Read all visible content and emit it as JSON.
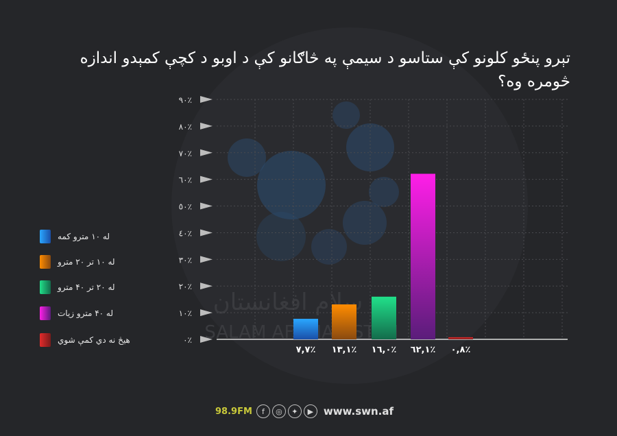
{
  "title": "تېرو پنځو کلونو کې ستاسو د سيمې په څاګانو کې د اوبو د کچې کمېدو اندازه څومره وه؟",
  "colors": {
    "background": "#252629",
    "text": "#ffffff",
    "axis": "#dddddd",
    "grid": "#4a4b4f"
  },
  "legend": [
    {
      "label": "له ۱۰ مترو کمه",
      "color_top": "#2aa7ff",
      "color_bottom": "#1a4fa8"
    },
    {
      "label": "له ۱۰ تر ۲۰ مترو",
      "color_top": "#ff8c00",
      "color_bottom": "#8a4a10"
    },
    {
      "label": "له ۲۰ تر ۴۰ مترو",
      "color_top": "#21e08a",
      "color_bottom": "#136b4b"
    },
    {
      "label": "له ۴۰ مترو زيات",
      "color_top": "#ff1ee8",
      "color_bottom": "#5a1d7a"
    },
    {
      "label": "هيڅ نه دي کمې شوي",
      "color_top": "#e32b2b",
      "color_bottom": "#7a1b1b"
    }
  ],
  "chart_data": {
    "type": "bar",
    "title": "تېرو پنځو کلونو کې ستاسو د سيمې په څاګانو کې د اوبو د کچې کمېدو اندازه څومره وه؟",
    "categories": [
      "له ۱۰ مترو کمه",
      "له ۱۰ تر ۲۰ مترو",
      "له ۲۰ تر ۴۰ مترو",
      "له ۴۰ مترو زيات",
      "هيڅ نه دي کمې شوي"
    ],
    "values": [
      7.7,
      13.1,
      16.0,
      62.1,
      0.8
    ],
    "value_labels": [
      "٧,٧٪",
      "١٣,١٪",
      "١٦,٠٪",
      "٦٢,١٪",
      "٠,٨٪"
    ],
    "yticks": [
      0,
      10,
      20,
      30,
      40,
      50,
      60,
      70,
      80,
      90
    ],
    "ytick_labels": [
      "٠٪",
      "١٠٪",
      "٢٠٪",
      "٣٠٪",
      "٤٠٪",
      "٥٠٪",
      "٦٠٪",
      "٧٠٪",
      "٨٠٪",
      "٩٠٪"
    ],
    "ylim": [
      0,
      90
    ],
    "grid": true,
    "legend_position": "left"
  },
  "watermark": {
    "line1": "سلام افغانستان",
    "line2": "SALAM AFGHANISTAN"
  },
  "footer": {
    "frequency": "98.9FM",
    "social_icons": [
      "facebook-icon",
      "instagram-icon",
      "twitter-icon",
      "youtube-icon"
    ],
    "website": "www.swn.af"
  }
}
